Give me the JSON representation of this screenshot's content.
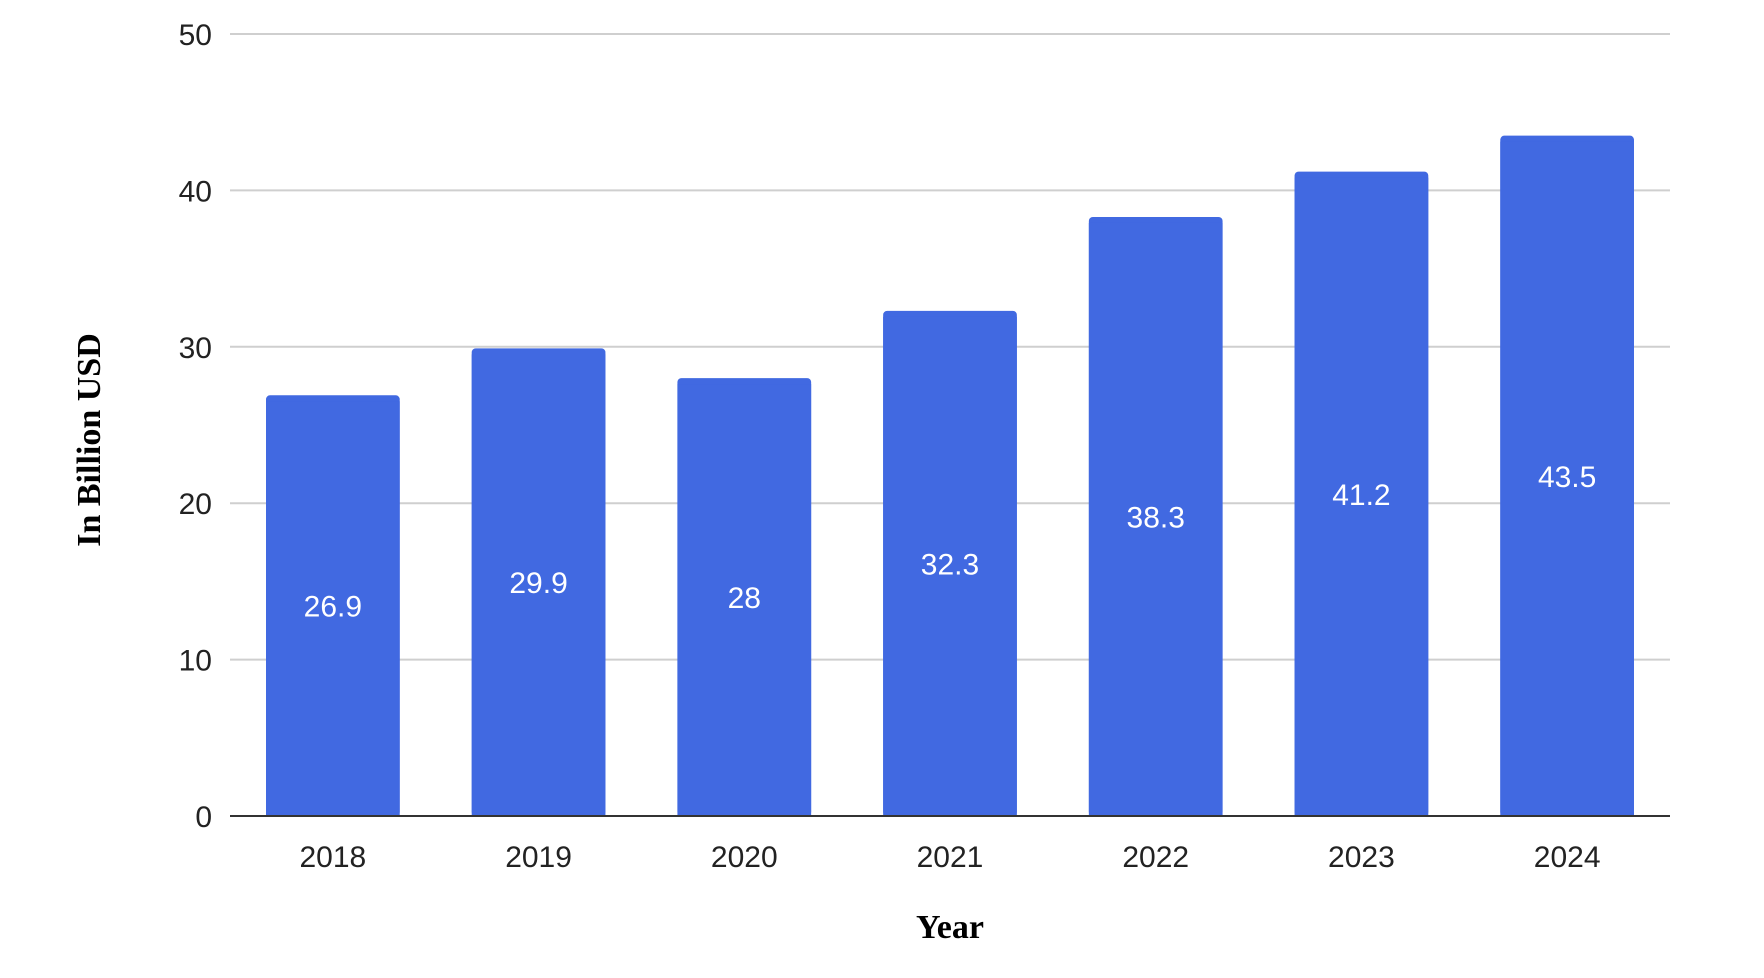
{
  "chart_data": {
    "type": "bar",
    "categories": [
      "2018",
      "2019",
      "2020",
      "2021",
      "2022",
      "2023",
      "2024"
    ],
    "values": [
      26.9,
      29.9,
      28,
      32.3,
      38.3,
      41.2,
      43.5
    ],
    "data_labels": [
      "26.9",
      "29.9",
      "28",
      "32.3",
      "38.3",
      "41.2",
      "43.5"
    ],
    "title": "",
    "xlabel": "Year",
    "ylabel": "In Billion USD",
    "ylim": [
      0,
      50
    ],
    "yticks": [
      "0",
      "10",
      "20",
      "30",
      "40",
      "50"
    ],
    "grid": true,
    "legend": "none",
    "bar_color": "#4169E1"
  }
}
